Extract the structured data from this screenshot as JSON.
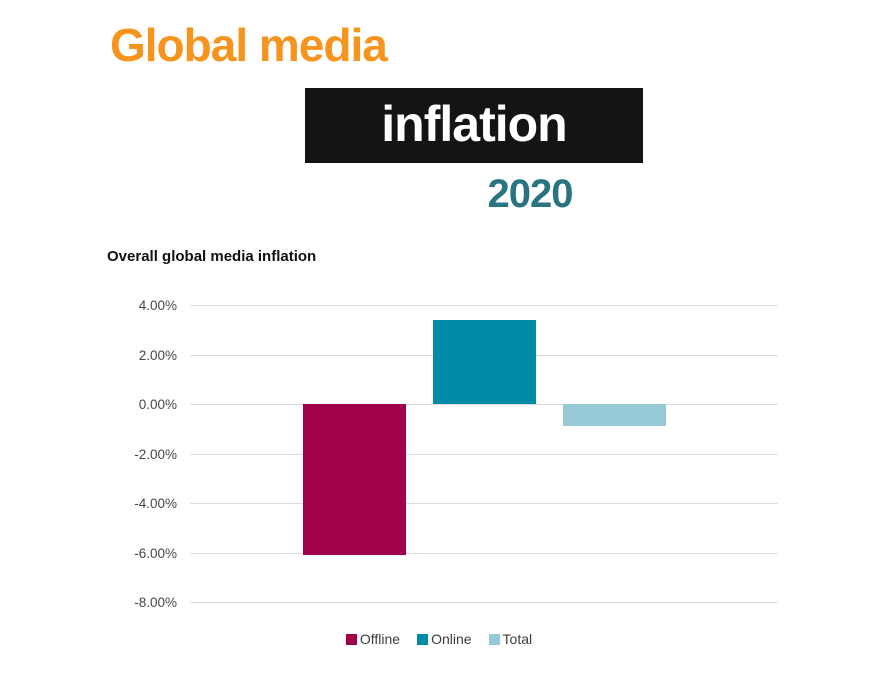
{
  "header": {
    "title_line1": "Global media",
    "title_line2": "inflation",
    "year": "2020",
    "colors": {
      "title_line1": "#F7941E",
      "title_line2_bg": "#141414",
      "title_line2_text": "#FFFFFF",
      "year": "#2A7482"
    }
  },
  "chart_data": {
    "type": "bar",
    "title": "Overall global media inflation",
    "categories": [
      "Offline",
      "Online",
      "Total"
    ],
    "values": [
      -6.1,
      3.4,
      -0.9
    ],
    "unit": "%",
    "series_colors": [
      "#A00349",
      "#008CA8",
      "#96C8D5"
    ],
    "ylim": [
      -8,
      4
    ],
    "ytick_step": 2,
    "ytick_labels": [
      "4.00%",
      "2.00%",
      "0.00%",
      "-2.00%",
      "-4.00%",
      "-6.00%",
      "-8.00%"
    ],
    "grid": true,
    "gridline_color": "#dcdcdc",
    "legend_position": "bottom",
    "legend": [
      "Offline",
      "Online",
      "Total"
    ],
    "xlabel": "",
    "ylabel": ""
  }
}
